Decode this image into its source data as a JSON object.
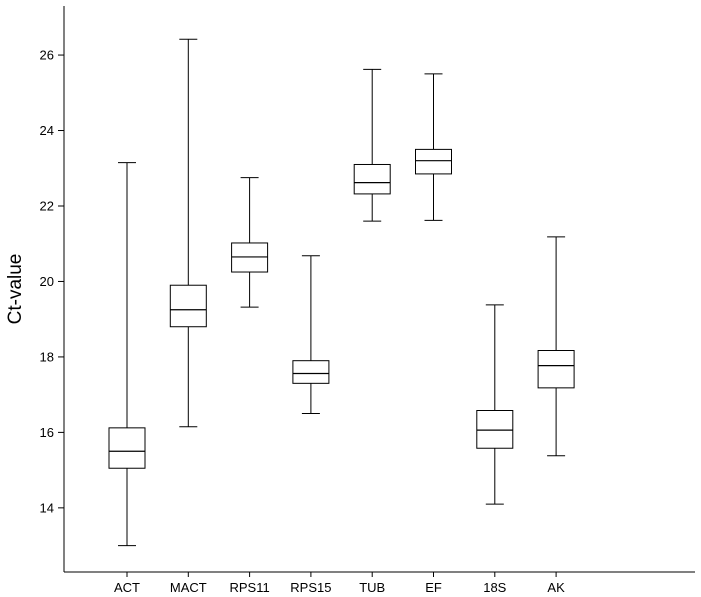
{
  "chart_data": {
    "type": "boxplot",
    "ylabel": "Ct-value",
    "ylim": [
      12.3,
      27.3
    ],
    "yticks": [
      14,
      16,
      18,
      20,
      22,
      24,
      26
    ],
    "grid": false,
    "categories": [
      "ACT",
      "MACT",
      "RPS11",
      "RPS15",
      "TUB",
      "EF",
      "18S",
      "AK"
    ],
    "boxes": [
      {
        "category": "ACT",
        "min": 13.0,
        "q1": 15.05,
        "median": 15.5,
        "q3": 16.12,
        "max": 23.15
      },
      {
        "category": "MACT",
        "min": 16.15,
        "q1": 18.8,
        "median": 19.25,
        "q3": 19.9,
        "max": 26.42
      },
      {
        "category": "RPS11",
        "min": 19.32,
        "q1": 20.25,
        "median": 20.65,
        "q3": 21.02,
        "max": 22.75
      },
      {
        "category": "RPS15",
        "min": 16.5,
        "q1": 17.3,
        "median": 17.56,
        "q3": 17.9,
        "max": 20.68
      },
      {
        "category": "TUB",
        "min": 21.6,
        "q1": 22.32,
        "median": 22.62,
        "q3": 23.1,
        "max": 25.62
      },
      {
        "category": "EF",
        "min": 21.62,
        "q1": 22.85,
        "median": 23.2,
        "q3": 23.5,
        "max": 25.5
      },
      {
        "category": "18S",
        "min": 14.1,
        "q1": 15.58,
        "median": 16.06,
        "q3": 16.58,
        "max": 19.38
      },
      {
        "category": "AK",
        "min": 15.38,
        "q1": 17.18,
        "median": 17.77,
        "q3": 18.17,
        "max": 21.18
      }
    ]
  }
}
